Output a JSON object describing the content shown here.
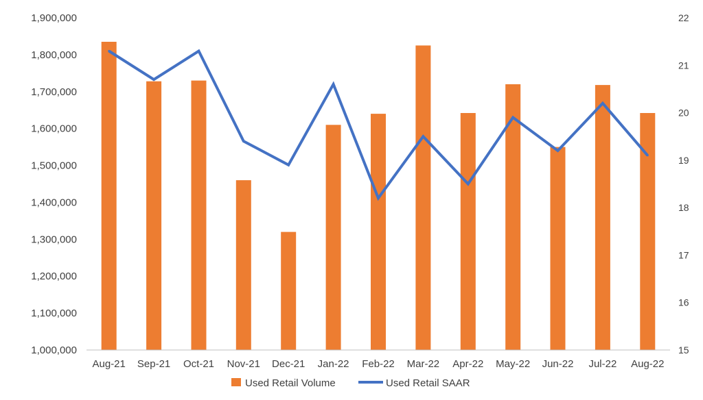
{
  "chart_data": {
    "type": "bar",
    "categories": [
      "Aug-21",
      "Sep-21",
      "Oct-21",
      "Nov-21",
      "Dec-21",
      "Jan-22",
      "Feb-22",
      "Mar-22",
      "Apr-22",
      "May-22",
      "Jun-22",
      "Jul-22",
      "Aug-22"
    ],
    "series": [
      {
        "name": "Used Retail Volume",
        "type": "bar",
        "axis": "left",
        "color": "#ED7D31",
        "values": [
          1835000,
          1728000,
          1730000,
          1460000,
          1320000,
          1610000,
          1640000,
          1825000,
          1642000,
          1720000,
          1550000,
          1718000,
          1642000
        ]
      },
      {
        "name": "Used Retail SAAR",
        "type": "line",
        "axis": "right",
        "color": "#4472C4",
        "values": [
          21.3,
          20.7,
          21.3,
          19.4,
          18.9,
          20.6,
          18.2,
          19.5,
          18.5,
          19.9,
          19.2,
          20.2,
          19.1
        ]
      }
    ],
    "y_left": {
      "ylim": [
        1000000,
        1900000
      ],
      "ticks": [
        "1,000,000",
        "1,100,000",
        "1,200,000",
        "1,300,000",
        "1,400,000",
        "1,500,000",
        "1,600,000",
        "1,700,000",
        "1,800,000",
        "1,900,000"
      ]
    },
    "y_right": {
      "ylim": [
        15,
        22
      ],
      "ticks": [
        "15",
        "16",
        "17",
        "18",
        "19",
        "20",
        "21",
        "22"
      ]
    },
    "grid": false,
    "legend": "bottom",
    "title": "",
    "xlabel": "",
    "ylabel": ""
  }
}
